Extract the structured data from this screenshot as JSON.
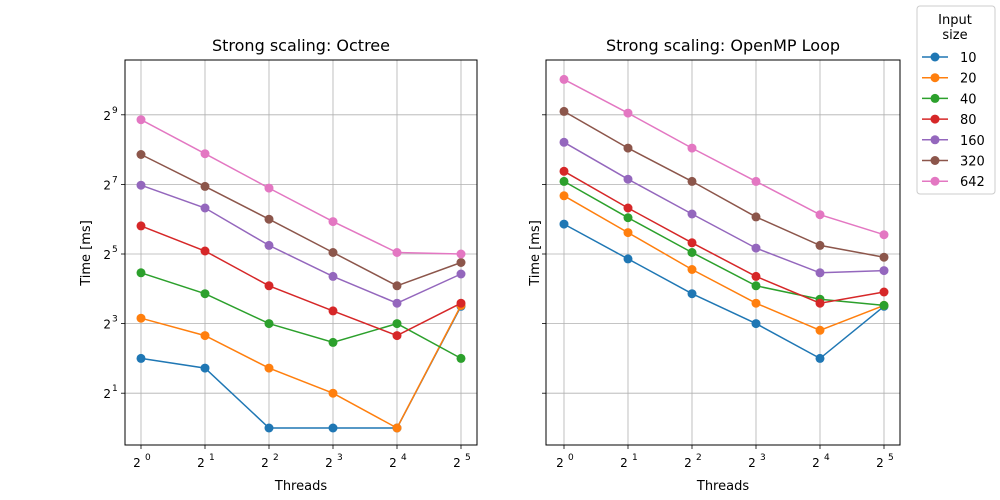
{
  "legend": {
    "title_line1": "Input",
    "title_line2": "size",
    "entries": [
      "10",
      "20",
      "40",
      "80",
      "160",
      "320",
      "642"
    ]
  },
  "colors": [
    "#1f77b4",
    "#ff7f0e",
    "#2ca02c",
    "#d62728",
    "#9467bd",
    "#8c564b",
    "#e377c2"
  ],
  "chart_data": [
    {
      "type": "line",
      "title": "Strong scaling: Octree",
      "xlabel": "Threads",
      "ylabel": "Time [ms]",
      "x": [
        1,
        2,
        4,
        8,
        16,
        32
      ],
      "x_ticks": [
        0,
        1,
        2,
        3,
        4,
        5
      ],
      "y_ticks": [
        1,
        3,
        5,
        7,
        9
      ],
      "x_scale": "log2",
      "y_scale": "log2",
      "grid": true,
      "series": [
        {
          "name": "10",
          "values": [
            4,
            3.3,
            1,
            1,
            1,
            11.3
          ]
        },
        {
          "name": "20",
          "values": [
            8.9,
            6.3,
            3.3,
            2,
            1,
            11.5
          ]
        },
        {
          "name": "40",
          "values": [
            22,
            14.5,
            8,
            5.5,
            8,
            4
          ]
        },
        {
          "name": "80",
          "values": [
            56,
            34,
            17,
            10.3,
            6.3,
            12
          ]
        },
        {
          "name": "160",
          "values": [
            126,
            80,
            38,
            20.5,
            12,
            21.5
          ]
        },
        {
          "name": "320",
          "values": [
            232,
            123,
            64,
            33,
            17,
            27
          ]
        },
        {
          "name": "642",
          "values": [
            464,
            236,
            119,
            61,
            33,
            32
          ]
        }
      ]
    },
    {
      "type": "line",
      "title": "Strong scaling: OpenMP Loop",
      "xlabel": "Threads",
      "ylabel": "Time [ms]",
      "x": [
        1,
        2,
        4,
        8,
        16,
        32
      ],
      "x_ticks": [
        0,
        1,
        2,
        3,
        4,
        5
      ],
      "y_ticks": [
        1,
        3,
        5,
        7,
        9
      ],
      "x_scale": "log2",
      "y_scale": "log2",
      "grid": true,
      "series": [
        {
          "name": "10",
          "values": [
            58,
            29,
            14.5,
            8,
            4,
            11.3
          ]
        },
        {
          "name": "20",
          "values": [
            102,
            49,
            23.5,
            12,
            7,
            11.5
          ]
        },
        {
          "name": "40",
          "values": [
            136,
            66,
            33,
            17,
            13,
            11.5
          ]
        },
        {
          "name": "80",
          "values": [
            166,
            80,
            40,
            20.5,
            12,
            15
          ]
        },
        {
          "name": "160",
          "values": [
            296,
            142,
            71,
            36,
            22,
            23
          ]
        },
        {
          "name": "320",
          "values": [
            548,
            264,
            136,
            67,
            38,
            30
          ]
        },
        {
          "name": "642",
          "values": [
            1037,
            530,
            264,
            136,
            70,
            47
          ]
        }
      ]
    }
  ]
}
